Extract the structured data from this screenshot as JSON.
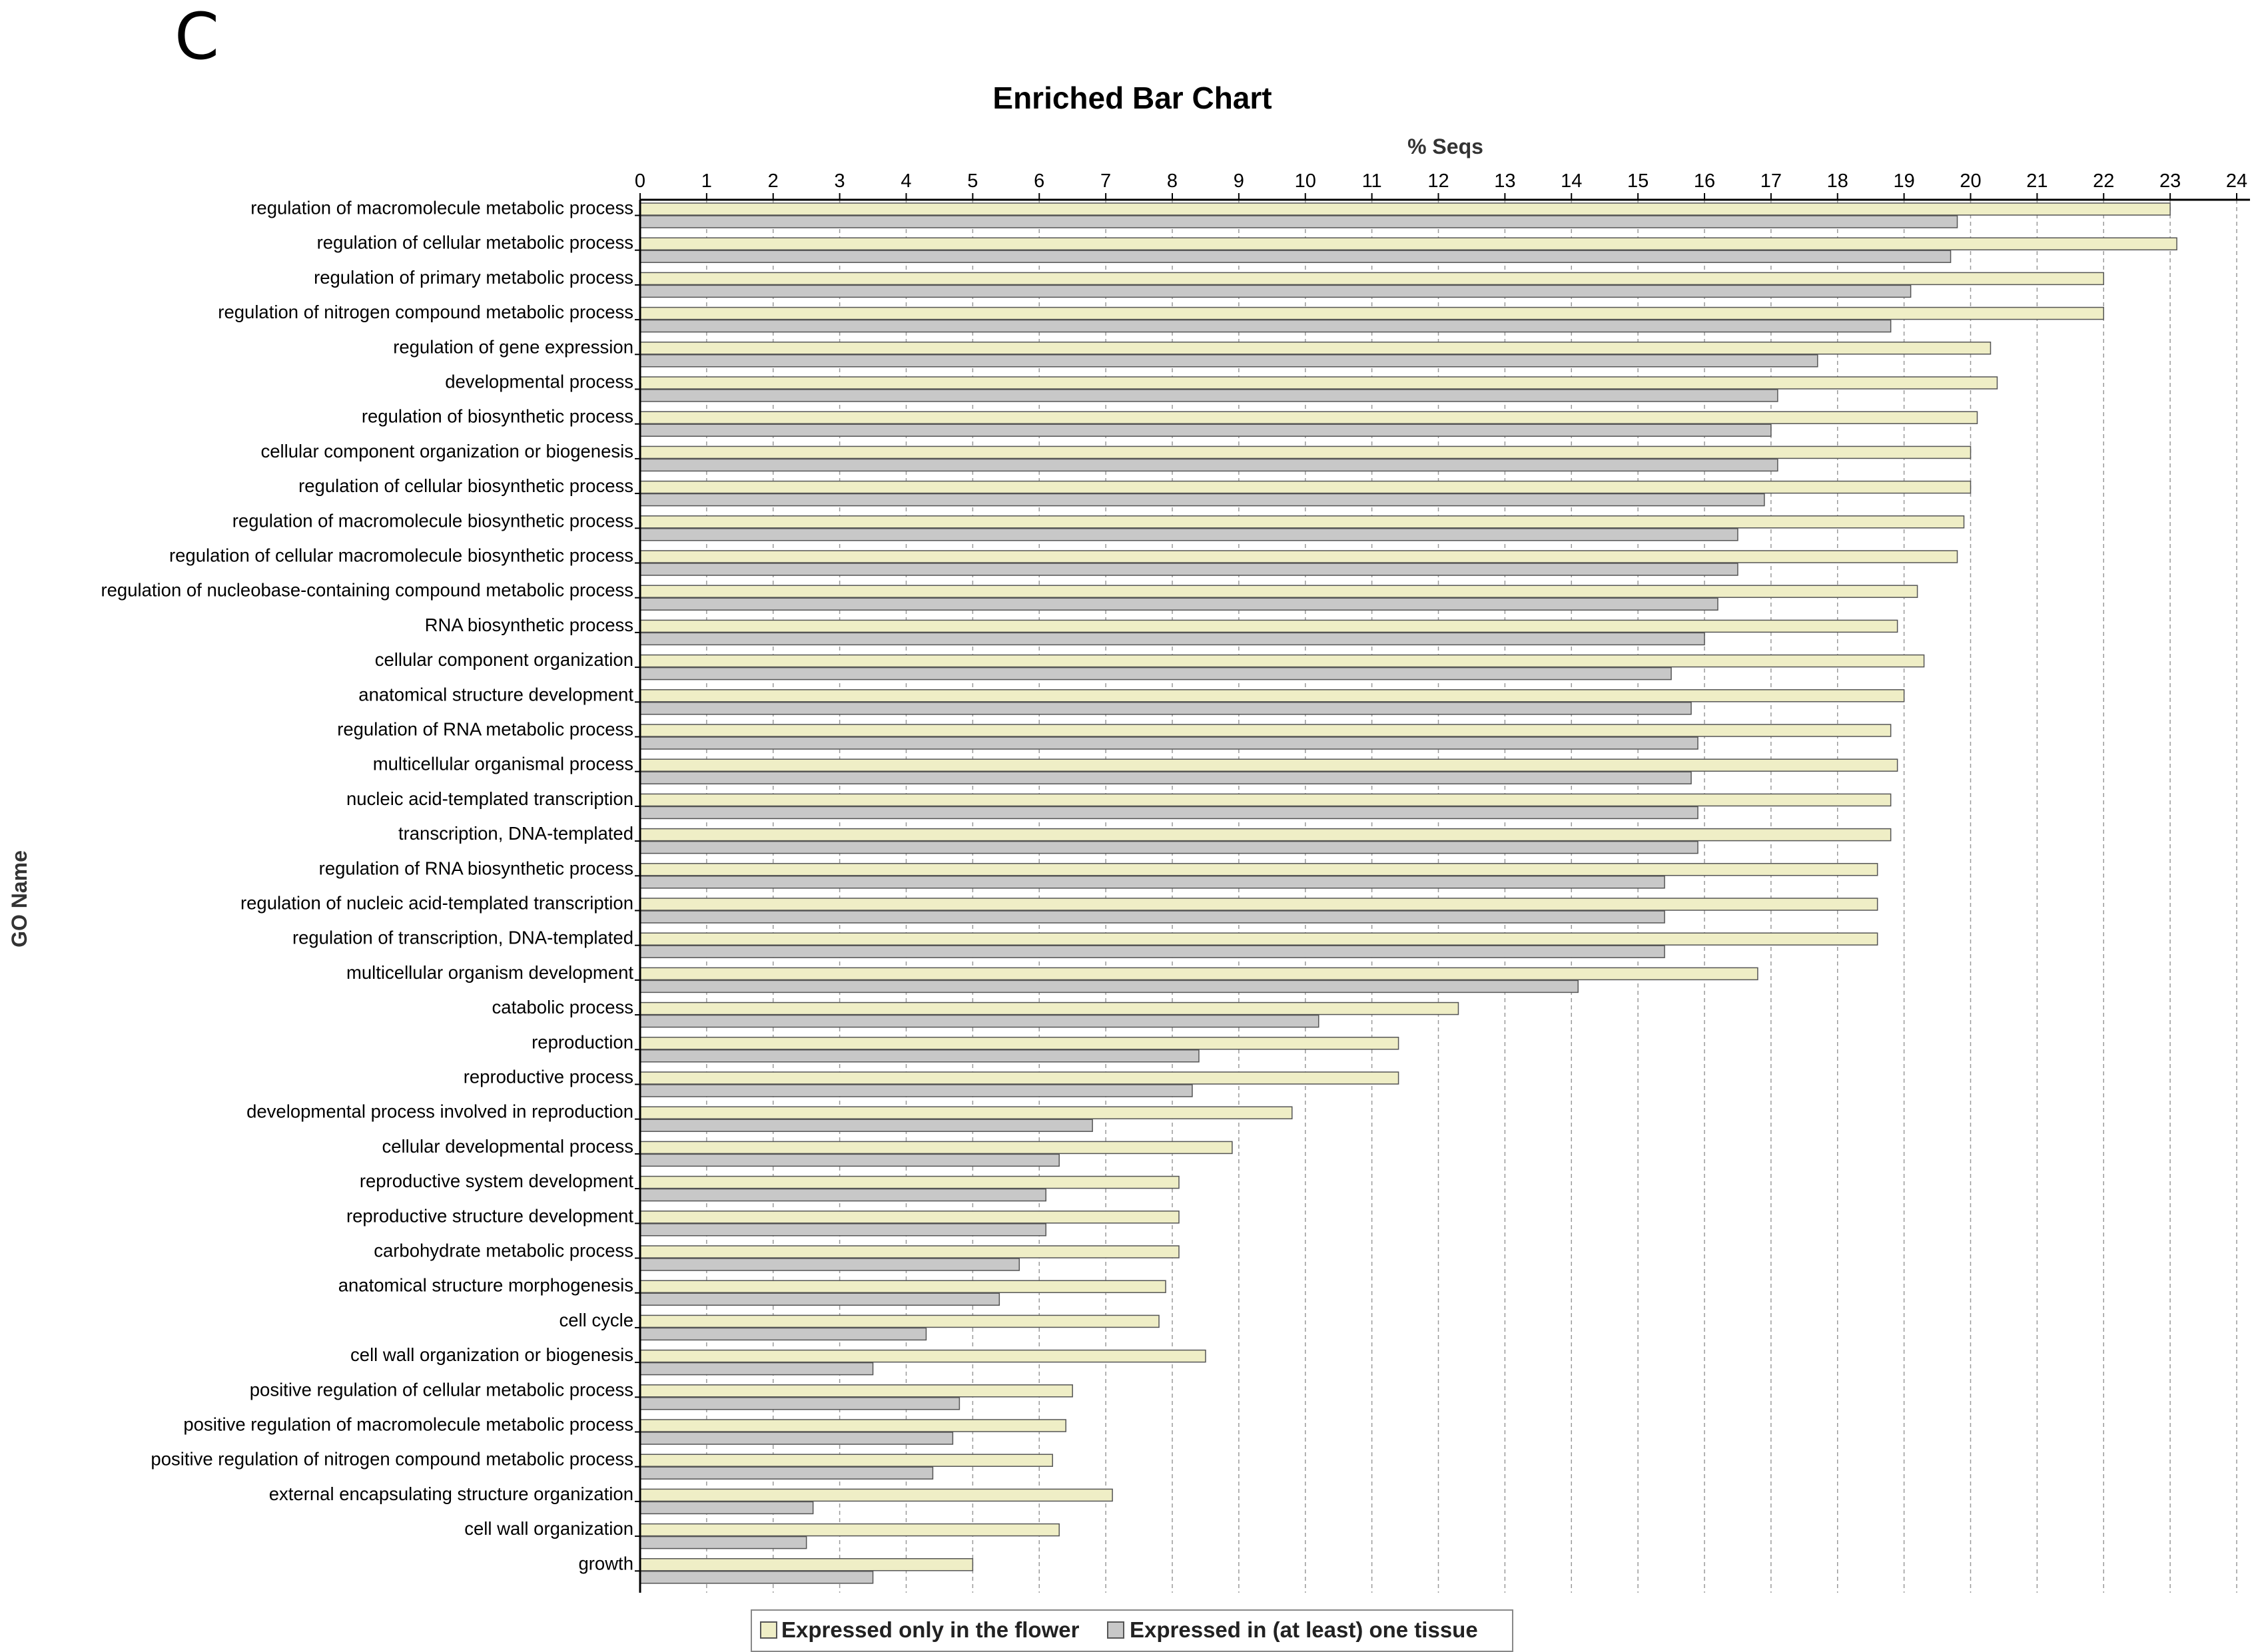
{
  "panel_label": "C",
  "colors": {
    "flower": "#efeec6",
    "tissue": "#c8c8c8",
    "bar_stroke": "#555555",
    "grid": "#9a9a9a",
    "axis": "#000000"
  },
  "chart_data": {
    "type": "bar",
    "orientation": "horizontal",
    "title": "Enriched Bar Chart",
    "xlabel": "% Seqs",
    "ylabel": "GO Name",
    "xlim": [
      0,
      24
    ],
    "xticks": [
      0,
      1,
      2,
      3,
      4,
      5,
      6,
      7,
      8,
      9,
      10,
      11,
      12,
      13,
      14,
      15,
      16,
      17,
      18,
      19,
      20,
      21,
      22,
      23,
      24
    ],
    "grid": true,
    "legend_position": "bottom",
    "categories": [
      "regulation of macromolecule metabolic process",
      "regulation of cellular metabolic process",
      "regulation of primary metabolic process",
      "regulation of nitrogen compound metabolic process",
      "regulation of gene expression",
      "developmental process",
      "regulation of biosynthetic process",
      "cellular component organization or biogenesis",
      "regulation of cellular biosynthetic process",
      "regulation of macromolecule biosynthetic process",
      "regulation of cellular macromolecule biosynthetic process",
      "regulation of nucleobase-containing compound metabolic process",
      "RNA biosynthetic process",
      "cellular component organization",
      "anatomical structure development",
      "regulation of RNA metabolic process",
      "multicellular organismal process",
      "nucleic acid-templated transcription",
      "transcription, DNA-templated",
      "regulation of RNA biosynthetic process",
      "regulation of nucleic acid-templated transcription",
      "regulation of transcription, DNA-templated",
      "multicellular organism development",
      "catabolic process",
      "reproduction",
      "reproductive process",
      "developmental process involved in reproduction",
      "cellular developmental process",
      "reproductive system development",
      "reproductive structure development",
      "carbohydrate metabolic process",
      "anatomical structure morphogenesis",
      "cell cycle",
      "cell wall organization or biogenesis",
      "positive regulation of cellular metabolic process",
      "positive regulation of macromolecule metabolic process",
      "positive regulation of nitrogen compound metabolic process",
      "external encapsulating structure organization",
      "cell wall organization",
      "growth"
    ],
    "series": [
      {
        "name": "Expressed only in the flower",
        "values": [
          23.0,
          23.1,
          22.0,
          22.0,
          20.3,
          20.4,
          20.1,
          20.0,
          20.0,
          19.9,
          19.8,
          19.2,
          18.9,
          19.3,
          19.0,
          18.8,
          18.9,
          18.8,
          18.8,
          18.6,
          18.6,
          18.6,
          16.8,
          12.3,
          11.4,
          11.4,
          9.8,
          8.9,
          8.1,
          8.1,
          8.1,
          7.9,
          7.8,
          8.5,
          6.5,
          6.4,
          6.2,
          7.1,
          6.3,
          5.0
        ]
      },
      {
        "name": "Expressed in (at least) one tissue",
        "values": [
          19.8,
          19.7,
          19.1,
          18.8,
          17.7,
          17.1,
          17.0,
          17.1,
          16.9,
          16.5,
          16.5,
          16.2,
          16.0,
          15.5,
          15.8,
          15.9,
          15.8,
          15.9,
          15.9,
          15.4,
          15.4,
          15.4,
          14.1,
          10.2,
          8.4,
          8.3,
          6.8,
          6.3,
          6.1,
          6.1,
          5.7,
          5.4,
          4.3,
          3.5,
          4.8,
          4.7,
          4.4,
          2.6,
          2.5,
          3.5
        ]
      }
    ]
  }
}
